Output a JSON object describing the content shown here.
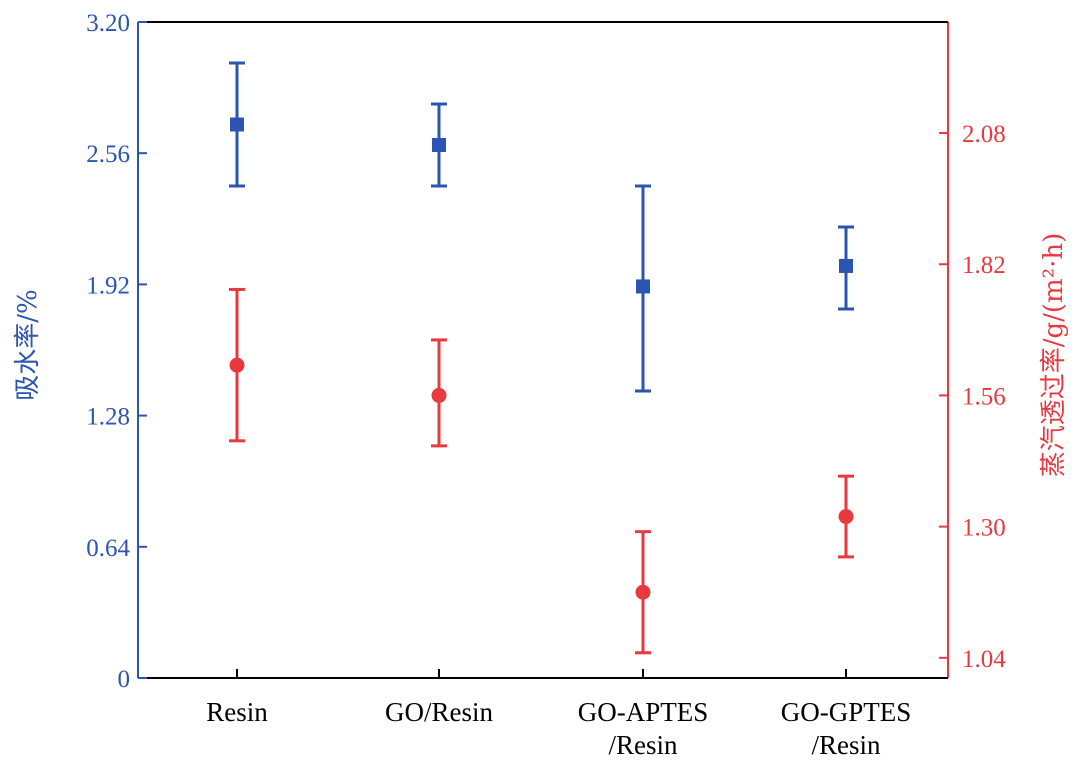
{
  "chart_data": {
    "type": "scatter",
    "title": "",
    "categories": [
      "Resin",
      "GO/Resin",
      "GO-APTES/Resin",
      "GO-GPTES/Resin"
    ],
    "x_tick_labels": [
      [
        "Resin"
      ],
      [
        "GO/Resin"
      ],
      [
        "GO-APTES",
        "/Resin"
      ],
      [
        "GO-GPTES",
        "/Resin"
      ]
    ],
    "left_axis": {
      "label": "吸水率/%",
      "ylim": [
        0,
        3.2
      ],
      "ticks": [
        0,
        0.64,
        1.28,
        1.92,
        2.56,
        3.2
      ],
      "tick_labels": [
        "0",
        "0.64",
        "1.28",
        "1.92",
        "2.56",
        "3.20"
      ],
      "color": "#2b55b0"
    },
    "right_axis": {
      "label": "蒸汽透过率/g/(m²·h)",
      "ylim": [
        1.0,
        2.3
      ],
      "ticks": [
        1.04,
        1.3,
        1.56,
        1.82,
        2.08
      ],
      "tick_labels": [
        "1.04",
        "1.30",
        "1.56",
        "1.82",
        "2.08"
      ],
      "color": "#e8393f"
    },
    "series": [
      {
        "name": "吸水率",
        "axis": "left",
        "marker": "square",
        "color": "#2b55b0",
        "values": [
          2.7,
          2.6,
          1.91,
          2.01
        ],
        "err_low": [
          2.4,
          2.4,
          1.4,
          1.8
        ],
        "err_high": [
          3.0,
          2.8,
          2.4,
          2.2
        ]
      },
      {
        "name": "蒸汽透过率",
        "axis": "right",
        "marker": "circle",
        "color": "#e8393f",
        "values": [
          1.62,
          1.56,
          1.17,
          1.32
        ],
        "err_low": [
          1.47,
          1.46,
          1.05,
          1.24
        ],
        "err_high": [
          1.77,
          1.67,
          1.29,
          1.4
        ]
      }
    ]
  }
}
